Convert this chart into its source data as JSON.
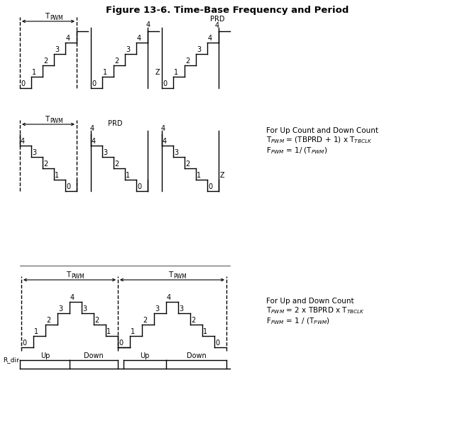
{
  "title": "Figure 13-6. Time-Base Frequency and Period",
  "title_fontsize": 9.5,
  "fig_width": 6.41,
  "fig_height": 6.04,
  "bg_color": "#ffffff",
  "line_color": "#000000",
  "text_color": "#000000",
  "label_fontsize": 7.0,
  "annot_fontsize": 7.5,
  "row1_ann1": "For Up Count and Down Count",
  "row1_ann2": "T$_{PWM}$ = (TBPRD + 1) x T$_{TBCLK}$",
  "row1_ann3": "F$_{PWM}$ = 1/ (T$_{PWM}$)",
  "row2_ann1": "For Up and Down Count",
  "row2_ann2": "T$_{PWM}$ = 2 x TBPRD x T$_{TBCLK}$",
  "row2_ann3": "F$_{PWM}$ = 1 / (T$_{PWM}$)"
}
